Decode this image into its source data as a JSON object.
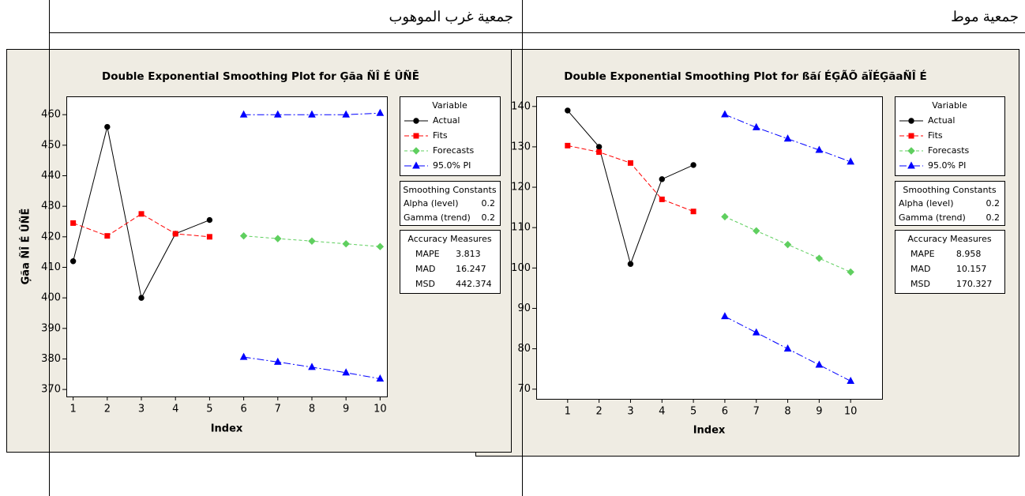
{
  "header": {
    "left_cell": "جمعية غرب الموهوب",
    "right_cell": "جمعية موط"
  },
  "chart_data": [
    {
      "type": "line",
      "title": "Double Exponential Smoothing Plot for Ģãa ÑÎ É ÛÑĒ",
      "xlabel": "Index",
      "ylabel": "Ģãa ÑÎ É ÛÑĒ",
      "x": [
        1,
        2,
        3,
        4,
        5,
        6,
        7,
        8,
        9,
        10
      ],
      "xlim": [
        0.8,
        10.2
      ],
      "xticks": [
        1,
        2,
        3,
        4,
        5,
        6,
        7,
        8,
        9,
        10
      ],
      "ylim": [
        367.7,
        466
      ],
      "yticks": [
        370,
        380,
        390,
        400,
        410,
        420,
        430,
        440,
        450,
        460
      ],
      "legend_title": "Variable",
      "series": [
        {
          "name": "Actual",
          "color": "#000000",
          "marker": "circle",
          "dash": "none",
          "values": [
            412,
            456,
            400,
            421,
            425.5,
            null,
            null,
            null,
            null,
            null
          ]
        },
        {
          "name": "Fits",
          "color": "#ff0000",
          "marker": "square",
          "dash": "6,3",
          "values": [
            424.5,
            420.3,
            427.5,
            421,
            420,
            null,
            null,
            null,
            null,
            null
          ]
        },
        {
          "name": "Forecasts",
          "color": "#5fcf5f",
          "marker": "diamond",
          "dash": "4,3",
          "values": [
            null,
            null,
            null,
            null,
            null,
            420.3,
            419.4,
            418.6,
            417.7,
            416.8
          ]
        },
        {
          "name": "95.0% PI",
          "color": "#0000ff",
          "marker": "triangle",
          "dash": "9,3,2,3",
          "upper": [
            null,
            null,
            null,
            null,
            null,
            460,
            460,
            460,
            460,
            460.5
          ],
          "lower": [
            null,
            null,
            null,
            null,
            null,
            380.6,
            379,
            377.3,
            375.5,
            373.5
          ]
        }
      ],
      "smoothing_constants": {
        "title": "Smoothing Constants",
        "rows": [
          [
            "Alpha (level)",
            0.2
          ],
          [
            "Gamma (trend)",
            0.2
          ]
        ]
      },
      "accuracy_measures": {
        "title": "Accuracy Measures",
        "rows": [
          [
            "MAPE",
            3.813
          ],
          [
            "MAD",
            16.247
          ],
          [
            "MSD",
            442.374
          ]
        ]
      }
    },
    {
      "type": "line",
      "title": "Double Exponential Smoothing Plot for ßãí ÉĢÃÕ ãÏÉĢãaÑÎ É",
      "xlabel": "Index",
      "x": [
        1,
        2,
        3,
        4,
        5,
        6,
        7,
        8,
        9,
        10
      ],
      "xlim": [
        0,
        11
      ],
      "xticks": [
        1,
        2,
        3,
        4,
        5,
        6,
        7,
        8,
        9,
        10
      ],
      "ylim": [
        67.6,
        142.5
      ],
      "yticks": [
        70,
        80,
        90,
        100,
        110,
        120,
        130,
        140
      ],
      "legend_title": "Variable",
      "series": [
        {
          "name": "Actual",
          "color": "#000000",
          "marker": "circle",
          "dash": "none",
          "values": [
            139,
            130,
            101,
            122,
            125.5,
            null,
            null,
            null,
            null,
            null
          ]
        },
        {
          "name": "Fits",
          "color": "#ff0000",
          "marker": "square",
          "dash": "6,3",
          "values": [
            130.3,
            128.7,
            126,
            117,
            114,
            null,
            null,
            null,
            null,
            null
          ]
        },
        {
          "name": "Forecasts",
          "color": "#5fcf5f",
          "marker": "diamond",
          "dash": "4,3",
          "values": [
            null,
            null,
            null,
            null,
            null,
            112.7,
            109.2,
            105.8,
            102.4,
            99
          ]
        },
        {
          "name": "95.0% PI",
          "color": "#0000ff",
          "marker": "triangle",
          "dash": "9,3,2,3",
          "upper": [
            null,
            null,
            null,
            null,
            null,
            138,
            134.8,
            132,
            129.2,
            126.3
          ],
          "lower": [
            null,
            null,
            null,
            null,
            null,
            88,
            84,
            80,
            76,
            72
          ]
        }
      ],
      "smoothing_constants": {
        "title": "Smoothing Constants",
        "rows": [
          [
            "Alpha (level)",
            0.2
          ],
          [
            "Gamma (trend)",
            0.2
          ]
        ]
      },
      "accuracy_measures": {
        "title": "Accuracy Measures",
        "rows": [
          [
            "MAPE",
            8.958
          ],
          [
            "MAD",
            10.157
          ],
          [
            "MSD",
            170.327
          ]
        ]
      }
    }
  ]
}
